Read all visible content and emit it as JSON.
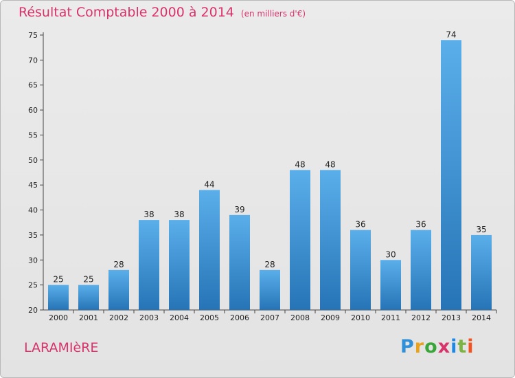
{
  "title": "Résultat Comptable 2000 à 2014",
  "subtitle": "(en milliers d'€)",
  "town": "LARAMIèRE",
  "logo": {
    "text": "Proxiti",
    "letter_colors": [
      "#2f8fd8",
      "#e8a21b",
      "#3aa63a",
      "#d8336b",
      "#1e88e5",
      "#7cb342",
      "#f4511e"
    ]
  },
  "colors": {
    "bar": "#4aa0e0",
    "bar_dark": "#2674b6",
    "title": "#d8336b"
  },
  "chart_data": {
    "type": "bar",
    "title": "Résultat Comptable 2000 à 2014",
    "subtitle": "(en milliers d'€)",
    "categories": [
      "2000",
      "2001",
      "2002",
      "2003",
      "2004",
      "2005",
      "2006",
      "2007",
      "2008",
      "2009",
      "2010",
      "2011",
      "2012",
      "2013",
      "2014"
    ],
    "values": [
      25,
      25,
      28,
      38,
      38,
      44,
      39,
      28,
      48,
      48,
      36,
      30,
      36,
      74,
      35
    ],
    "ylim": [
      20,
      75
    ],
    "yticks": [
      20,
      25,
      30,
      35,
      40,
      45,
      50,
      55,
      60,
      65,
      70,
      75
    ],
    "grid": false,
    "legend": "none"
  }
}
